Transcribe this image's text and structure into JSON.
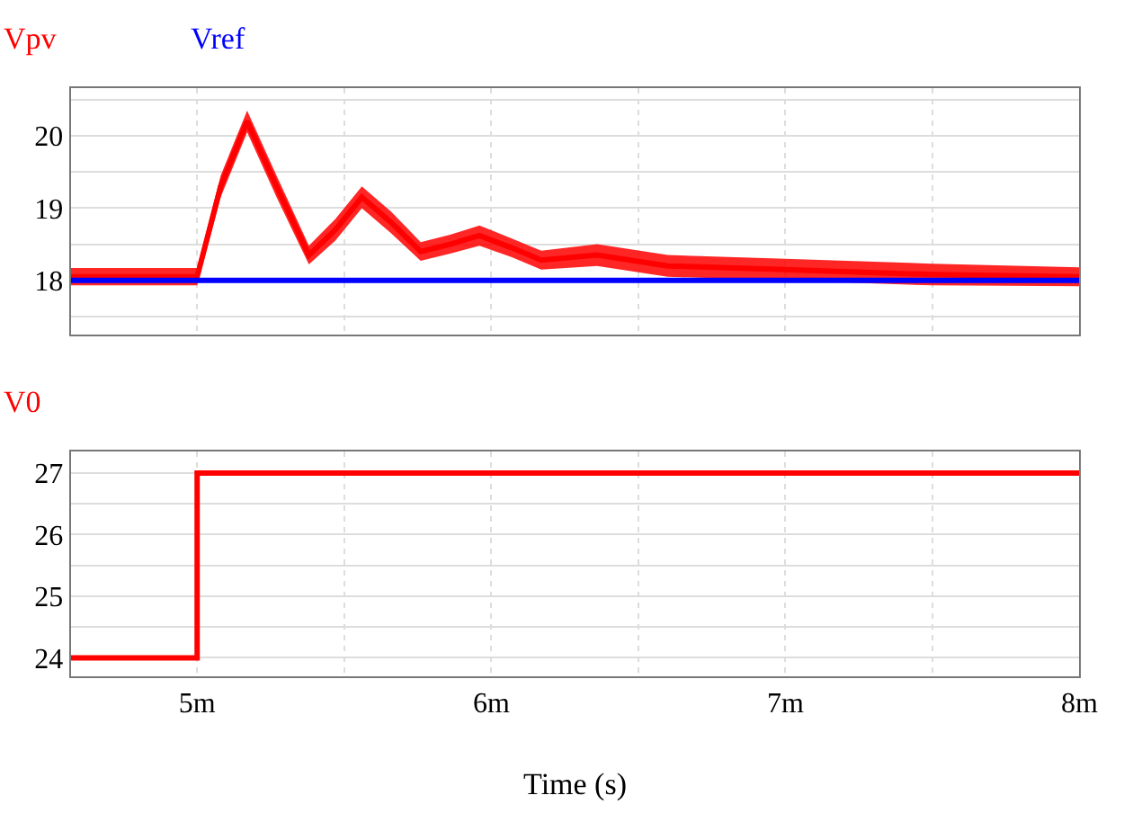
{
  "chart_data": [
    {
      "type": "line",
      "tick_labels": "y",
      "grid": true,
      "xlim": [
        4.57,
        8
      ],
      "ylim": [
        17.25,
        20.66
      ],
      "xticks": [
        {
          "value": 5,
          "label": null
        },
        {
          "value": 5.5,
          "label": null
        },
        {
          "value": 6,
          "label": null
        },
        {
          "value": 6.5,
          "label": null
        },
        {
          "value": 7,
          "label": null
        },
        {
          "value": 7.5,
          "label": null
        },
        {
          "value": 8,
          "label": null
        }
      ],
      "yticks": [
        {
          "value": 17.5,
          "label": null
        },
        18,
        {
          "value": 18.5,
          "label": null
        },
        19,
        {
          "value": 19.5,
          "label": null
        },
        20,
        {
          "value": 20.5,
          "label": null
        }
      ],
      "series": [
        {
          "name": "Vpv",
          "color": "#ff0000",
          "x": [
            4.57,
            5.0,
            5.08,
            5.17,
            5.27,
            5.38,
            5.47,
            5.56,
            5.66,
            5.76,
            5.86,
            5.96,
            6.07,
            6.17,
            6.36,
            6.6,
            7.0,
            7.5,
            8.0
          ],
          "values": [
            18.05,
            18.05,
            19.3,
            20.2,
            19.3,
            18.35,
            18.7,
            19.15,
            18.8,
            18.4,
            18.5,
            18.62,
            18.45,
            18.28,
            18.35,
            18.2,
            18.15,
            18.08,
            18.05
          ],
          "lower": [
            17.93,
            17.93,
            19.15,
            20.05,
            19.15,
            18.22,
            18.55,
            19.0,
            18.65,
            18.27,
            18.37,
            18.48,
            18.32,
            18.15,
            18.2,
            18.05,
            18.0,
            17.93,
            17.92
          ],
          "upper": [
            18.17,
            18.17,
            19.45,
            20.35,
            19.45,
            18.48,
            18.85,
            19.3,
            18.95,
            18.53,
            18.63,
            18.76,
            18.58,
            18.41,
            18.5,
            18.35,
            18.3,
            18.23,
            18.18
          ]
        },
        {
          "name": "Vref",
          "color": "#0000ff",
          "x": [
            4.57,
            8
          ],
          "values": [
            18,
            18
          ]
        }
      ]
    },
    {
      "type": "step",
      "xlabel": "Time (s)",
      "grid": true,
      "xlim": [
        4.57,
        8
      ],
      "ylim": [
        23.7,
        27.35
      ],
      "xticks": [
        {
          "value": 5,
          "label": "5m"
        },
        {
          "value": 5.5,
          "label": null
        },
        {
          "value": 6,
          "label": "6m"
        },
        {
          "value": 6.5,
          "label": null
        },
        {
          "value": 7,
          "label": "7m"
        },
        {
          "value": 7.5,
          "label": null
        },
        {
          "value": 8,
          "label": "8m"
        }
      ],
      "yticks": [
        24,
        {
          "value": 24.5,
          "label": null
        },
        25,
        {
          "value": 25.5,
          "label": null
        },
        26,
        {
          "value": 26.5,
          "label": null
        },
        27
      ],
      "series": [
        {
          "name": "V0",
          "color": "#ff0000",
          "x": [
            4.57,
            5,
            8
          ],
          "values": [
            24,
            27,
            27
          ]
        }
      ]
    }
  ]
}
